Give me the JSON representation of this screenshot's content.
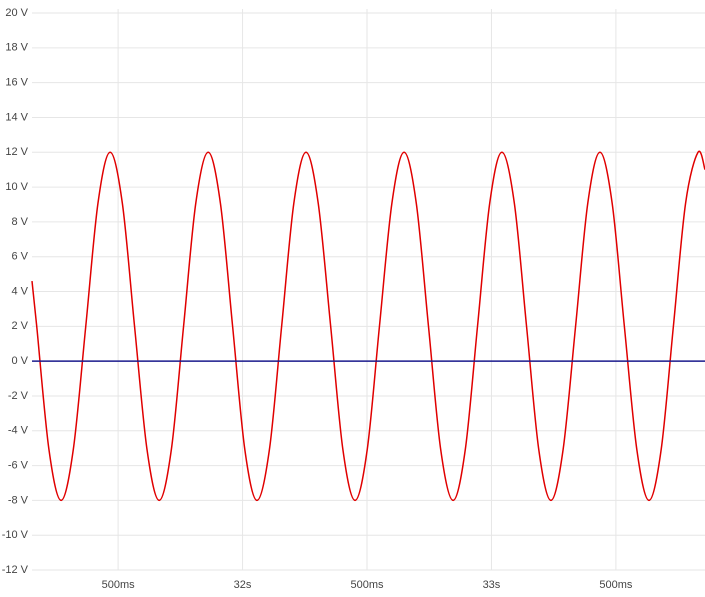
{
  "chart_data": {
    "type": "line",
    "x": [
      31.154,
      31.173,
      31.222,
      31.271,
      31.32,
      31.37,
      31.419,
      31.468,
      31.517,
      31.566,
      31.616,
      31.665,
      31.714,
      31.763,
      31.812,
      31.862,
      31.911,
      31.96,
      32.009,
      32.058,
      32.108,
      32.157,
      32.206,
      32.255,
      32.304,
      32.354,
      32.403,
      32.452,
      32.501,
      32.55,
      32.6,
      32.649,
      32.698,
      32.747,
      32.796,
      32.846,
      32.895,
      32.944,
      32.993,
      33.042,
      33.092,
      33.141,
      33.19,
      33.239,
      33.288,
      33.338,
      33.387,
      33.436,
      33.485,
      33.534,
      33.584,
      33.633,
      33.682,
      33.731,
      33.78,
      33.83,
      33.858
    ],
    "series": [
      {
        "color": "#e00000",
        "values": [
          4.6,
          2,
          -5.07,
          -8,
          -5.07,
          2,
          9.07,
          12,
          9.07,
          2,
          -5.07,
          -8,
          -5.07,
          2,
          9.07,
          12,
          9.07,
          2,
          -5.07,
          -8,
          -5.07,
          2,
          9.07,
          12,
          9.07,
          2,
          -5.07,
          -8,
          -5.07,
          2,
          9.07,
          12,
          9.07,
          2,
          -5.07,
          -8,
          -5.07,
          2,
          9.07,
          12,
          9.07,
          2,
          -5.07,
          -8,
          -5.07,
          2,
          9.07,
          12,
          9.07,
          2,
          -5.07,
          -8,
          -5.07,
          2,
          9.07,
          12,
          11
        ]
      },
      {
        "color": "#1a1a8c",
        "values": [
          0,
          0,
          0,
          0,
          0,
          0,
          0,
          0,
          0,
          0,
          0,
          0,
          0,
          0,
          0,
          0,
          0,
          0,
          0,
          0,
          0,
          0,
          0,
          0,
          0,
          0,
          0,
          0,
          0,
          0,
          0,
          0,
          0,
          0,
          0,
          0,
          0,
          0,
          0,
          0,
          0,
          0,
          0,
          0,
          0,
          0,
          0,
          0,
          0,
          0,
          0,
          0,
          0,
          0,
          0,
          0,
          0
        ]
      }
    ],
    "xlim": [
      31.154,
      33.858
    ],
    "xticks": [
      {
        "value": 31.5,
        "label": "500ms"
      },
      {
        "value": 32,
        "label": "32s"
      },
      {
        "value": 32.5,
        "label": "500ms"
      },
      {
        "value": 33,
        "label": "33s"
      },
      {
        "value": 33.5,
        "label": "500ms"
      }
    ],
    "ylim": [
      -12,
      20
    ],
    "yticks": [
      {
        "value": 20,
        "label": "20 V"
      },
      {
        "value": 18,
        "label": "18 V"
      },
      {
        "value": 16,
        "label": "16 V"
      },
      {
        "value": 14,
        "label": "14 V"
      },
      {
        "value": 12,
        "label": "12 V"
      },
      {
        "value": 10,
        "label": "10 V"
      },
      {
        "value": 8,
        "label": "8 V"
      },
      {
        "value": 6,
        "label": "6 V"
      },
      {
        "value": 4,
        "label": "4 V"
      },
      {
        "value": 2,
        "label": "2 V"
      },
      {
        "value": 0,
        "label": "0 V"
      },
      {
        "value": -2,
        "label": "-2 V"
      },
      {
        "value": -4,
        "label": "-4 V"
      },
      {
        "value": -6,
        "label": "-6 V"
      },
      {
        "value": -8,
        "label": "-8 V"
      },
      {
        "value": -10,
        "label": "-10 V"
      },
      {
        "value": -12,
        "label": "-12 V"
      }
    ],
    "grid": true
  }
}
